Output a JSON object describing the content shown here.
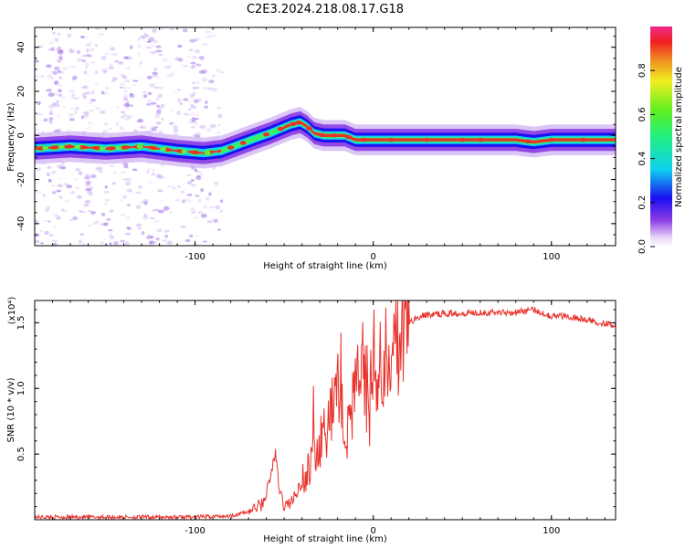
{
  "title": "C2E3.2024.218.08.17.G18",
  "colors": {
    "spectrogram_core": "#e8322c",
    "snr_line": "#e8322c",
    "background": "#ffffff"
  },
  "chart_data": [
    {
      "type": "heatmap",
      "xlabel": "Height of straight line (km)",
      "ylabel": "Frequency (Hz)",
      "xlim": [
        -190,
        136
      ],
      "ylim": [
        -50,
        49
      ],
      "x_ticks": [
        -100,
        0,
        100
      ],
      "y_ticks": [
        -40,
        -20,
        0,
        20,
        40
      ],
      "grid": false,
      "ridge_frequency": {
        "x": [
          -190,
          -170,
          -150,
          -130,
          -110,
          -95,
          -85,
          -75,
          -65,
          -58,
          -52,
          -46,
          -41,
          -37,
          -33,
          -28,
          -22,
          -16,
          -10,
          -5,
          0,
          20,
          50,
          80,
          90,
          100,
          120,
          136
        ],
        "y": [
          -6,
          -5,
          -6,
          -5,
          -7,
          -8,
          -7,
          -4,
          -1,
          1,
          3,
          5,
          6,
          4,
          1,
          0,
          0,
          0,
          -2,
          -2,
          -2,
          -2,
          -2,
          -2,
          -3,
          -2,
          -2,
          -2
        ]
      },
      "colorbar": {
        "label": "Normalized spectral amplitude",
        "range": [
          0,
          1
        ],
        "ticks": [
          "0.0",
          "0.2",
          "0.4",
          "0.6",
          "0.8"
        ]
      }
    },
    {
      "type": "line",
      "xlabel": "Height of straight line (km)",
      "ylabel": "SNR (10 * v/v)",
      "y_multiplier": "(x10⁴)",
      "xlim": [
        -190,
        136
      ],
      "ylim": [
        0,
        1.67
      ],
      "x_ticks": [
        -100,
        0,
        100
      ],
      "y_ticks": [
        "0.5",
        "1.0",
        "1.5"
      ],
      "grid": false,
      "series": [
        {
          "x": [
            -190,
            -150,
            -120,
            -100,
            -80,
            -70,
            -62,
            -58,
            -55,
            -53,
            -50,
            -45,
            -40,
            -35,
            -30,
            -25,
            -22,
            -18,
            -15,
            -10,
            -5,
            -2,
            0,
            2,
            5,
            10,
            15,
            20,
            25,
            30,
            40,
            60,
            80,
            90,
            100,
            110,
            120,
            136
          ],
          "y": [
            0.02,
            0.02,
            0.02,
            0.02,
            0.03,
            0.06,
            0.12,
            0.3,
            0.52,
            0.25,
            0.1,
            0.15,
            0.3,
            0.42,
            0.55,
            0.78,
            0.95,
            0.98,
            0.6,
            1.05,
            1.1,
            0.8,
            1.35,
            0.95,
            1.25,
            1.3,
            1.4,
            1.5,
            1.54,
            1.56,
            1.57,
            1.58,
            1.58,
            1.6,
            1.55,
            1.55,
            1.52,
            1.48
          ]
        }
      ]
    }
  ]
}
